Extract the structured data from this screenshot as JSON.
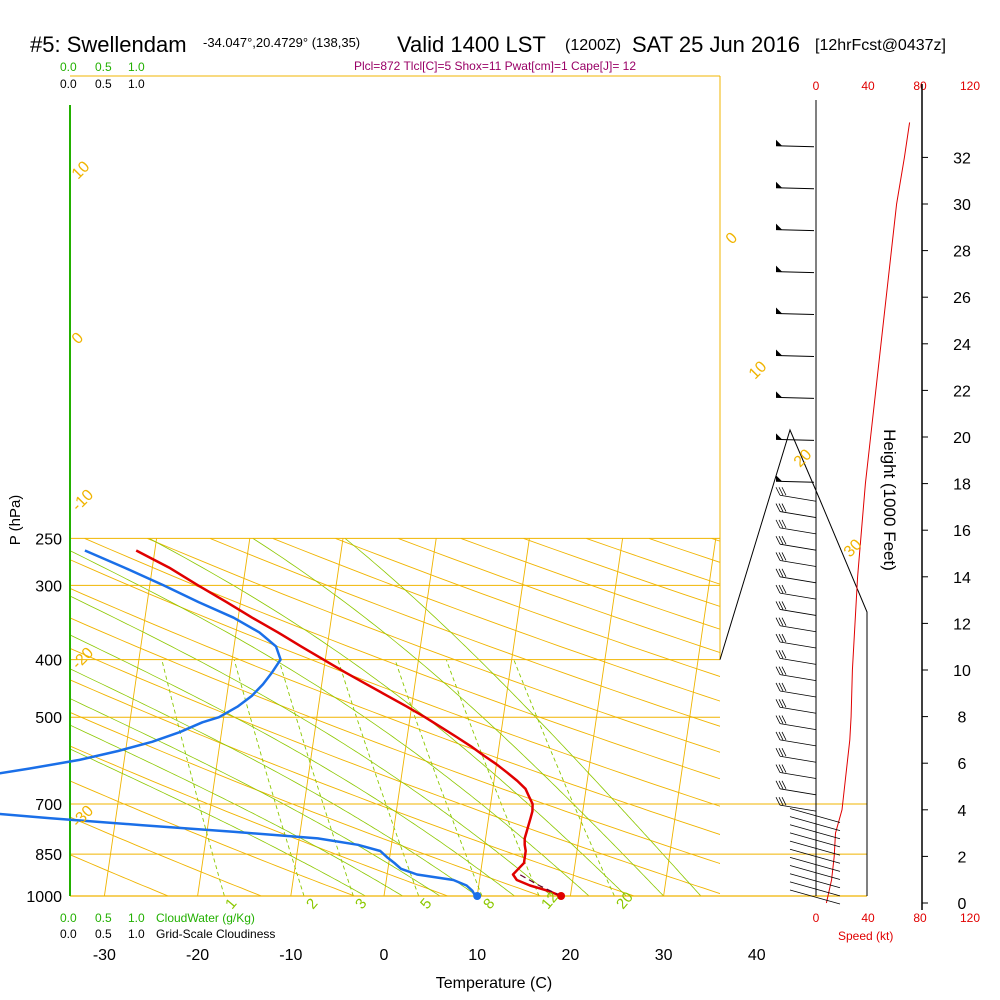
{
  "header": {
    "station": "#5: Swellendam",
    "coords": "-34.047°,20.4729° (138,35)",
    "valid": "Valid 1400 LST",
    "zulu": "(1200Z)",
    "date": "SAT 25 Jun 2016",
    "forecast": "[12hrFcst@0437z]"
  },
  "indices": "Plcl=872 Tlcl[C]=5 Shox=11 Pwat[cm]=1 Cape[J]= 12",
  "colors": {
    "temperature": "#e00000",
    "dewpoint": "#1a6fe8",
    "isotherm": "#f0b400",
    "mixing": "#8cc800",
    "cloudwater": "#22b000",
    "speed": "#e00000"
  },
  "cloud_scale": {
    "top_green": [
      "0.0",
      "0.5",
      "1.0"
    ],
    "top_black": [
      "0.0",
      "0.5",
      "1.0"
    ],
    "bottom_green": [
      "0.0",
      "0.5",
      "1.0"
    ],
    "bottom_green_label": "CloudWater (g/Kg)",
    "bottom_black": [
      "0.0",
      "0.5",
      "1.0"
    ],
    "bottom_black_label": "Grid-Scale Cloudiness"
  },
  "speed_axis": {
    "top_ticks": [
      "0",
      "40",
      "80",
      "120"
    ],
    "bottom_ticks": [
      "0",
      "40",
      "80",
      "120"
    ],
    "label": "Speed (kt)"
  },
  "chart_data": {
    "type": "line",
    "xlabel": "Temperature (C)",
    "ylabel": "P (hPa)",
    "y2label": "Height (1000 Feet)",
    "x_ticks": [
      "-30",
      "-20",
      "-10",
      "0",
      "10",
      "20",
      "30",
      "40"
    ],
    "p_ticks": [
      "250",
      "300",
      "400",
      "500",
      "700",
      "850",
      "1000"
    ],
    "height_ticks": [
      "0",
      "2",
      "4",
      "6",
      "8",
      "10",
      "12",
      "14",
      "16",
      "18",
      "20",
      "22",
      "24",
      "26",
      "28",
      "30",
      "32"
    ],
    "isotherm_labels": [
      "10",
      "0",
      "-10",
      "-20",
      "-30",
      "0",
      "10",
      "20",
      "30"
    ],
    "mixing_ratio_labels": [
      "1",
      "2",
      "3",
      "5",
      "8",
      "12",
      "20"
    ],
    "series": [
      {
        "name": "Temperature",
        "points": [
          [
            19,
            1000
          ],
          [
            17.5,
            980
          ],
          [
            15.5,
            960
          ],
          [
            14,
            940
          ],
          [
            13.5,
            920
          ],
          [
            14,
            900
          ],
          [
            14.5,
            880
          ],
          [
            14.5,
            860
          ],
          [
            14.5,
            840
          ],
          [
            14.3,
            820
          ],
          [
            14.2,
            800
          ],
          [
            14.3,
            780
          ],
          [
            14.4,
            760
          ],
          [
            14.5,
            740
          ],
          [
            14.6,
            720
          ],
          [
            14.5,
            700
          ],
          [
            14,
            680
          ],
          [
            13.5,
            660
          ],
          [
            12.5,
            640
          ],
          [
            11.3,
            620
          ],
          [
            10,
            600
          ],
          [
            8.5,
            580
          ],
          [
            7,
            560
          ],
          [
            5.3,
            540
          ],
          [
            3.5,
            520
          ],
          [
            1.6,
            500
          ],
          [
            -0.5,
            480
          ],
          [
            -2.8,
            460
          ],
          [
            -5.2,
            440
          ],
          [
            -7.7,
            420
          ],
          [
            -10.2,
            400
          ],
          [
            -12.8,
            380
          ],
          [
            -15.5,
            360
          ],
          [
            -18.5,
            340
          ],
          [
            -21.5,
            320
          ],
          [
            -24.8,
            300
          ],
          [
            -28.2,
            280
          ],
          [
            -32,
            262
          ]
        ]
      },
      {
        "name": "Dewpoint",
        "points": [
          [
            9.8,
            1000
          ],
          [
            9.4,
            980
          ],
          [
            8.7,
            960
          ],
          [
            7.2,
            940
          ],
          [
            3.2,
            920
          ],
          [
            1.4,
            900
          ],
          [
            0.6,
            880
          ],
          [
            -0.3,
            860
          ],
          [
            -1.1,
            840
          ],
          [
            -3.6,
            820
          ],
          [
            -8,
            800
          ],
          [
            -17,
            780
          ],
          [
            -27,
            760
          ],
          [
            -37,
            740
          ],
          [
            -46,
            720
          ],
          [
            -52,
            700
          ],
          [
            -56.5,
            680
          ],
          [
            -56.5,
            670
          ],
          [
            -51.5,
            650
          ],
          [
            -45.5,
            630
          ],
          [
            -40,
            610
          ],
          [
            -34.8,
            590
          ],
          [
            -30.8,
            570
          ],
          [
            -27.3,
            550
          ],
          [
            -24.5,
            530
          ],
          [
            -22.2,
            510
          ],
          [
            -20.5,
            500
          ],
          [
            -18.7,
            480
          ],
          [
            -17.3,
            460
          ],
          [
            -16.3,
            440
          ],
          [
            -15.5,
            420
          ],
          [
            -14.8,
            400
          ],
          [
            -15.5,
            380
          ],
          [
            -17.5,
            360
          ],
          [
            -20.5,
            340
          ],
          [
            -24.5,
            320
          ],
          [
            -28.5,
            300
          ],
          [
            -33,
            280
          ],
          [
            -37.5,
            262
          ]
        ]
      },
      {
        "name": "Parcel",
        "points": [
          [
            19,
            1000
          ],
          [
            16.5,
            960
          ],
          [
            14.2,
            920
          ]
        ]
      }
    ],
    "surface_temperature": 19,
    "surface_dewpoint": 10,
    "wind_speed_profile_kt": [
      [
        0,
        8
      ],
      [
        1,
        12
      ],
      [
        2,
        14
      ],
      [
        3,
        15
      ],
      [
        4,
        20
      ],
      [
        5,
        22
      ],
      [
        6,
        24
      ],
      [
        7,
        26
      ],
      [
        8,
        27
      ],
      [
        10,
        28
      ],
      [
        12,
        30
      ],
      [
        14,
        32
      ],
      [
        16,
        35
      ],
      [
        18,
        38
      ],
      [
        20,
        42
      ],
      [
        22,
        46
      ],
      [
        24,
        50
      ],
      [
        26,
        54
      ],
      [
        28,
        58
      ],
      [
        30,
        62
      ],
      [
        32,
        68
      ],
      [
        33.5,
        72
      ]
    ],
    "xlim": [
      -33,
      47
    ],
    "ylim": [
      1000,
      250
    ]
  }
}
